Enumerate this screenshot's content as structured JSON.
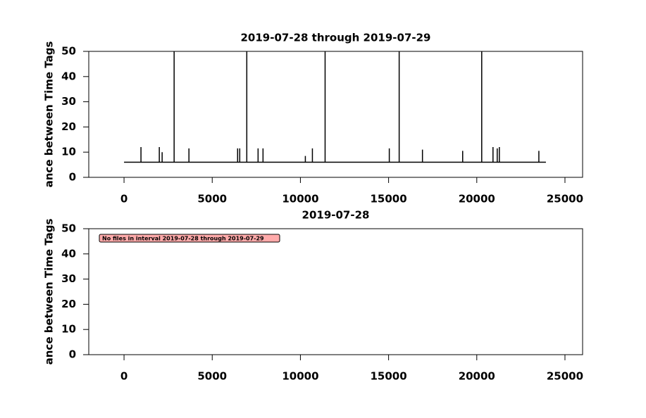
{
  "chart_data": [
    {
      "type": "line",
      "title": "2019-07-28 through 2019-07-29",
      "ylabel": "ance between Time Tags",
      "xlim": [
        -2000,
        26000
      ],
      "ylim": [
        0,
        50
      ],
      "xticks": [
        0,
        5000,
        10000,
        15000,
        20000,
        25000
      ],
      "yticks": [
        0,
        10,
        20,
        30,
        40,
        50
      ],
      "series": [
        {
          "color": "#000000",
          "x": [
            0,
            960,
            960,
            960,
            2000,
            2000,
            2000,
            2160,
            2160,
            2160,
            2840,
            2840,
            2840,
            3680,
            3680,
            3680,
            6440,
            6440,
            6440,
            6560,
            6560,
            6560,
            6960,
            6960,
            6960,
            7600,
            7600,
            7600,
            7880,
            7880,
            7880,
            10280,
            10280,
            10280,
            10680,
            10680,
            10680,
            11400,
            11400,
            11400,
            15040,
            15040,
            15040,
            15600,
            15600,
            15600,
            16920,
            16920,
            16920,
            19200,
            19200,
            19200,
            20280,
            20280,
            20280,
            20920,
            20920,
            20920,
            21160,
            21160,
            21160,
            21280,
            21280,
            21280,
            23520,
            23520,
            23520,
            23920
          ],
          "values": [
            6,
            6,
            12,
            6,
            6,
            12,
            6,
            6,
            10,
            6,
            6,
            50,
            6,
            6,
            11.5,
            6,
            6,
            11.5,
            6,
            6,
            11.5,
            6,
            6,
            50,
            6,
            6,
            11.5,
            6,
            6,
            11.5,
            6,
            6,
            8.5,
            6,
            6,
            11.5,
            6,
            6,
            50,
            6,
            6,
            11.5,
            6,
            6,
            50,
            6,
            6,
            11,
            6,
            6,
            10.5,
            6,
            6,
            50,
            6,
            6,
            12,
            6,
            6,
            11.5,
            6,
            6,
            12,
            6,
            6,
            10.5,
            6,
            6
          ]
        }
      ]
    },
    {
      "type": "line",
      "title": "2019-07-28",
      "ylabel": "ance between Time Tags",
      "xlim": [
        -2000,
        26000
      ],
      "ylim": [
        0,
        50
      ],
      "xticks": [
        0,
        5000,
        10000,
        15000,
        20000,
        25000
      ],
      "yticks": [
        0,
        10,
        20,
        30,
        40,
        50
      ],
      "annotation": "No files in interval 2019-07-28 through 2019-07-29",
      "series": []
    }
  ]
}
